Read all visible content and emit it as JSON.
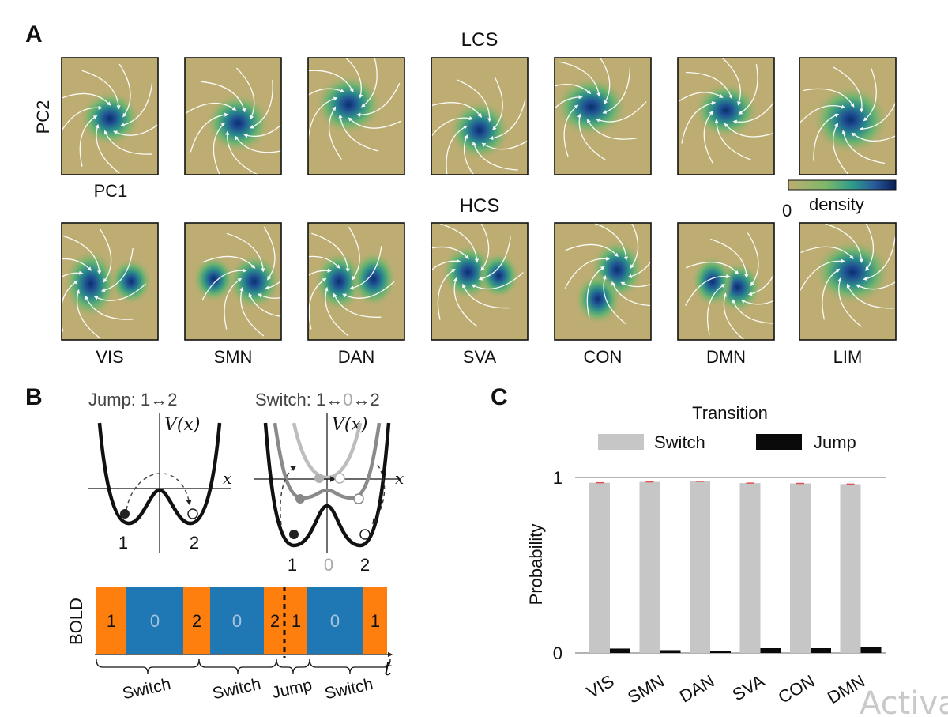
{
  "panel_a": {
    "letter": "A",
    "lcs_title": "LCS",
    "hcs_title": "HCS",
    "y_axis": "PC2",
    "x_axis": "PC1",
    "colorbar_zero": "0",
    "colorbar_label": "density",
    "networks": [
      "VIS",
      "SMN",
      "DAN",
      "SVA",
      "CON",
      "DMN",
      "LIM"
    ]
  },
  "panel_b": {
    "letter": "B",
    "jump_title": "Jump: 1↔2",
    "switch_title_prefix": "Switch: 1↔",
    "switch_title_zero": "0",
    "switch_title_suffix": "↔2",
    "potential_label": "V(x)",
    "x_label": "x",
    "jump_state_1": "1",
    "jump_state_2": "2",
    "switch_state_1": "1",
    "switch_state_0": "0",
    "switch_state_2": "2",
    "bold_label": "BOLD",
    "time_label": "t",
    "bold_segments": [
      "1",
      "0",
      "2",
      "0",
      "2",
      "1",
      "0",
      "1"
    ],
    "braces": [
      "Switch",
      "Switch",
      "Jump",
      "Switch"
    ]
  },
  "panel_c": {
    "letter": "C",
    "legend_title": "Transition",
    "legend_items": [
      "Switch",
      "Jump"
    ],
    "colors": {
      "switch": "#c6c6c6",
      "jump": "#0a0a0a"
    }
  },
  "chart_data": {
    "type": "bar",
    "title": "Transition",
    "xlabel": "",
    "ylabel": "Probability",
    "ylim": [
      0,
      1
    ],
    "yticks": [
      "0",
      "1"
    ],
    "categories": [
      "VIS",
      "SMN",
      "DAN",
      "SVA",
      "CON",
      "DMN"
    ],
    "series": [
      {
        "name": "Switch",
        "values": [
          0.97,
          0.975,
          0.978,
          0.968,
          0.966,
          0.962
        ]
      },
      {
        "name": "Jump",
        "values": [
          0.025,
          0.016,
          0.013,
          0.027,
          0.027,
          0.032
        ]
      }
    ]
  },
  "watermark": "Activa"
}
